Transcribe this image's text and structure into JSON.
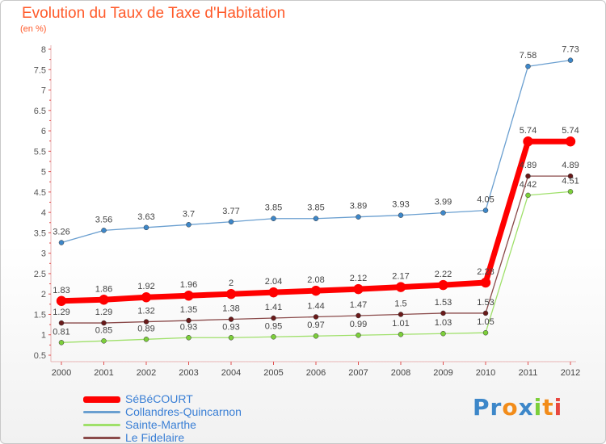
{
  "chart_data": {
    "type": "line",
    "title": "Evolution du Taux de Taxe d'Habitation",
    "subtitle": "(en %)",
    "x": [
      "2000",
      "2001",
      "2002",
      "2003",
      "2004",
      "2005",
      "2006",
      "2007",
      "2008",
      "2009",
      "2010",
      "2011",
      "2012"
    ],
    "ylim": [
      0.5,
      8
    ],
    "yticks": [
      "0.5",
      "1",
      "1.5",
      "2",
      "2.5",
      "3",
      "3.5",
      "4",
      "4.5",
      "5",
      "5.5",
      "6",
      "6.5",
      "7",
      "7.5",
      "8"
    ],
    "grid": false,
    "legend_position": "bottom-left",
    "series": [
      {
        "name": "SéBéCOURT",
        "color": "#ff0000",
        "marker": "#ff0000",
        "width": 7,
        "values": [
          1.83,
          1.86,
          1.92,
          1.96,
          2,
          2.04,
          2.08,
          2.12,
          2.17,
          2.22,
          2.28,
          5.74,
          5.74
        ],
        "labels": [
          "1.83",
          "1.86",
          "1.92",
          "1.96",
          "2",
          "2.04",
          "2.08",
          "2.12",
          "2.17",
          "2.22",
          "2.28",
          "5.74",
          "5.74"
        ]
      },
      {
        "name": "Collandres-Quincarnon",
        "color": "#6a9fd0",
        "marker": "#3d87c9",
        "width": 1.3,
        "values": [
          3.26,
          3.56,
          3.63,
          3.7,
          3.77,
          3.85,
          3.85,
          3.89,
          3.93,
          3.99,
          4.05,
          7.58,
          7.73
        ],
        "labels": [
          "3.26",
          "3.56",
          "3.63",
          "3.7",
          "3.77",
          "3.85",
          "3.85",
          "3.89",
          "3.93",
          "3.99",
          "4.05",
          "7.58",
          "7.73"
        ]
      },
      {
        "name": "Sainte-Marthe",
        "color": "#9fe06a",
        "marker": "#7ccf3a",
        "width": 1.3,
        "values": [
          0.81,
          0.85,
          0.89,
          0.93,
          0.93,
          0.95,
          0.97,
          0.99,
          1.01,
          1.03,
          1.05,
          4.42,
          4.51
        ],
        "labels": [
          "0.81",
          "0.85",
          "0.89",
          "0.93",
          "0.93",
          "0.95",
          "0.97",
          "0.99",
          "1.01",
          "1.03",
          "1.05",
          "4.42",
          "4.51"
        ]
      },
      {
        "name": "Le Fidelaire",
        "color": "#8a4a4a",
        "marker": "#6a1a1a",
        "width": 1.3,
        "values": [
          1.29,
          1.29,
          1.32,
          1.35,
          1.38,
          1.41,
          1.44,
          1.47,
          1.5,
          1.53,
          1.53,
          4.89,
          4.89
        ],
        "labels": [
          "1.29",
          "1.29",
          "1.32",
          "1.35",
          "1.38",
          "1.41",
          "1.44",
          "1.47",
          "1.5",
          "1.53",
          "1.53",
          "4.89",
          "4.89"
        ]
      }
    ]
  },
  "logo": {
    "letters": [
      "P",
      "r",
      "o",
      "x",
      "i",
      "t",
      "i"
    ],
    "colors": [
      "#3d87c9",
      "#3d87c9",
      "#f28c1a",
      "#3d87c9",
      "#7ccf3a",
      "#f28c1a",
      "#e8473f"
    ]
  }
}
